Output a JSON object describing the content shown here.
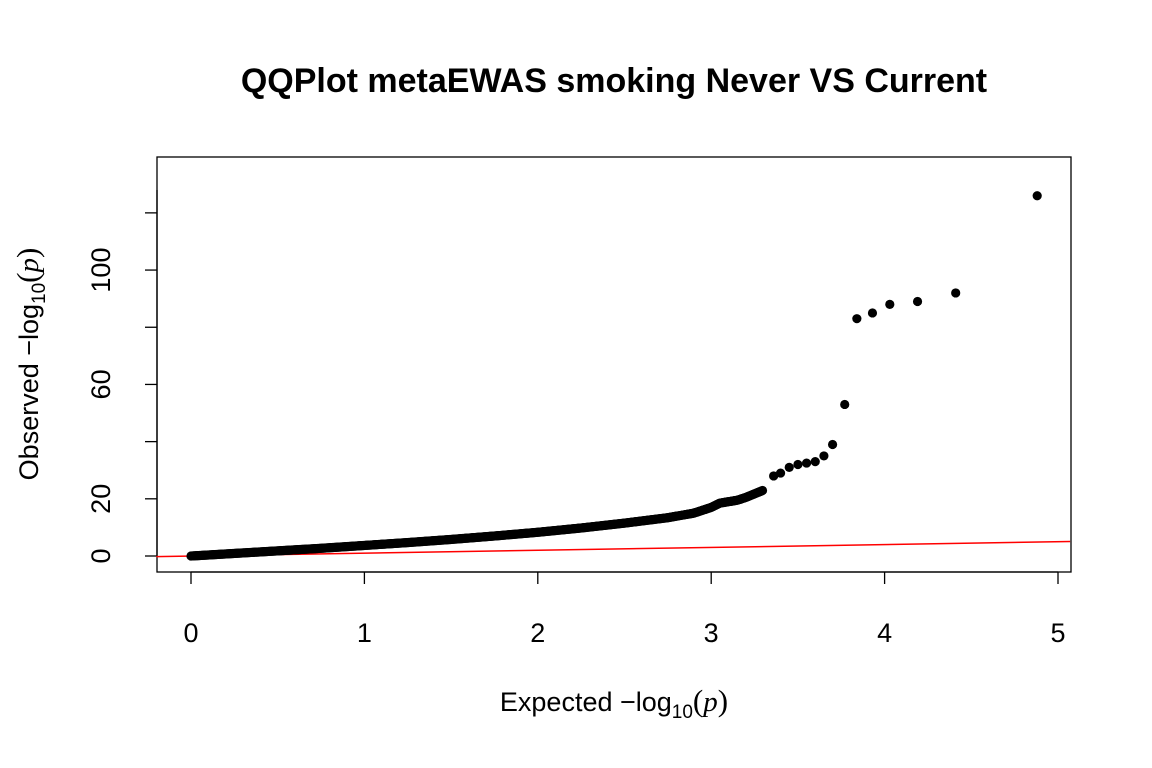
{
  "chart_data": {
    "type": "scatter",
    "title": "QQPlot metaEWAS smoking Never VS Current",
    "xlabel": {
      "prefix": "Expected  −log",
      "subscript": "10",
      "open": "(",
      "var": "p",
      "close": ")"
    },
    "ylabel": {
      "prefix": "Observed  −log",
      "subscript": "10",
      "open": "(",
      "var": "p",
      "close": ")"
    },
    "xlim": [
      0,
      5
    ],
    "ylim": [
      0,
      128
    ],
    "x_ticks": [
      "0",
      "1",
      "2",
      "3",
      "4",
      "5"
    ],
    "y_ticks": [
      "0",
      "20",
      "40",
      "60",
      "80",
      "100",
      "120"
    ],
    "y_ticks_labeled": [
      "0",
      "20",
      "60",
      "100"
    ],
    "grid": false,
    "point_color": "#000000",
    "reference_line": {
      "slope": 1,
      "intercept": 0,
      "color": "#ff0000"
    },
    "curve": {
      "x": [
        0,
        0.25,
        0.5,
        0.75,
        1.0,
        1.25,
        1.5,
        1.75,
        2.0,
        2.25,
        2.5,
        2.75,
        2.9,
        3.0,
        3.05,
        3.1,
        3.15,
        3.2,
        3.3
      ],
      "y": [
        0,
        0.9,
        1.8,
        2.7,
        3.7,
        4.7,
        5.8,
        7.0,
        8.3,
        9.8,
        11.5,
        13.4,
        15.0,
        17.0,
        18.5,
        19.0,
        19.5,
        20.5,
        23.0
      ]
    },
    "outliers": {
      "x": [
        3.36,
        3.4,
        3.45,
        3.5,
        3.55,
        3.6,
        3.65,
        3.7,
        3.77,
        3.84,
        3.93,
        4.03,
        4.19,
        4.41,
        4.88
      ],
      "y": [
        28,
        29,
        31,
        32,
        32.5,
        33,
        35,
        39,
        53,
        83,
        85,
        88,
        89,
        92,
        126
      ]
    }
  }
}
